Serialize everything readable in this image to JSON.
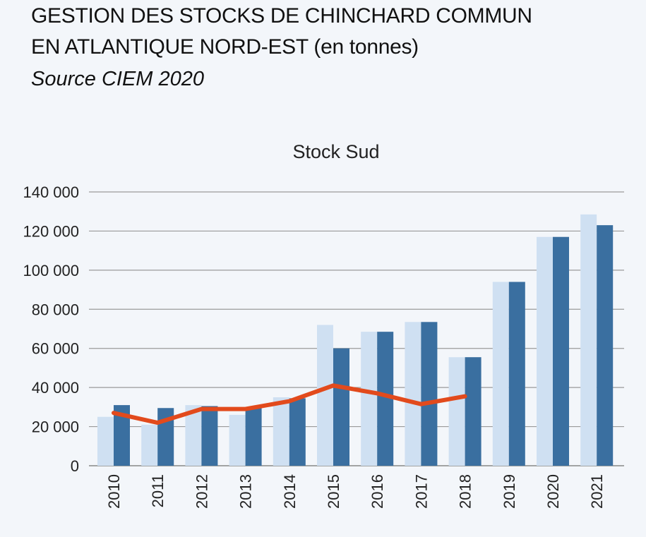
{
  "header": {
    "title_line1": "GESTION DES STOCKS DE CHINCHARD COMMUN",
    "title_line2": "EN ATLANTIQUE NORD-EST",
    "title_unit": "(en tonnes)",
    "source": "Source CIEM 2020"
  },
  "chart_data": {
    "type": "bar",
    "title": "Stock Sud",
    "categories": [
      "2010",
      "2011",
      "2012",
      "2013",
      "2014",
      "2015",
      "2016",
      "2017",
      "2018",
      "2019",
      "2020",
      "2021"
    ],
    "series": [
      {
        "type": "bar",
        "color": "#cfe0f2",
        "values": [
          25000,
          21000,
          31000,
          26000,
          35000,
          72000,
          68500,
          73500,
          55500,
          94000,
          117000,
          128500
        ]
      },
      {
        "type": "bar",
        "color": "#3a6fa0",
        "values": [
          31000,
          29500,
          30500,
          29500,
          34500,
          60000,
          68500,
          73500,
          55500,
          94000,
          117000,
          123000
        ]
      },
      {
        "type": "line",
        "color": "#e24a1c",
        "values": [
          27000,
          22000,
          29000,
          29000,
          33000,
          41000,
          37000,
          31500,
          35500,
          null,
          null,
          null
        ]
      }
    ],
    "ylim": [
      0,
      140000
    ],
    "yticks": [
      0,
      20000,
      40000,
      60000,
      80000,
      100000,
      120000,
      140000
    ],
    "ytick_labels": [
      "0",
      "20 000",
      "40 000",
      "60 000",
      "80 000",
      "100 000",
      "120 000",
      "140 000"
    ],
    "grid": true,
    "legend": "none"
  }
}
